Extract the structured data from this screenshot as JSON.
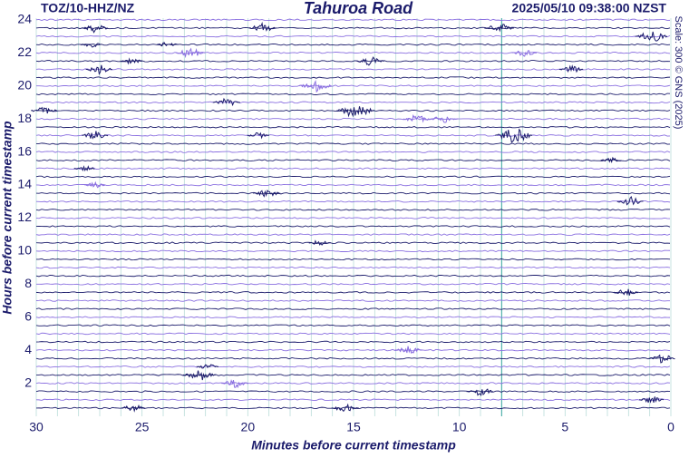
{
  "chart_data": {
    "type": "helicorder",
    "station": "TOZ/10-HHZ/NZ",
    "title": "Tahuroa Road",
    "timestamp": "2025/05/10 09:38:00 NZST",
    "scale_note": "Scale: 300 © GNS (2025)",
    "x_label": "Minutes before current timestamp",
    "y_label": "Hours before current timestamp",
    "xlim": [
      30,
      0
    ],
    "ylim": [
      0,
      24.1
    ],
    "xticks": [
      30,
      25,
      20,
      15,
      10,
      5,
      0
    ],
    "yticks": [
      2,
      4,
      6,
      8,
      10,
      12,
      14,
      16,
      18,
      20,
      22,
      24
    ],
    "trace_interval_hours": 0.5,
    "trace_colors": [
      "#8a6fe0",
      "#1b1b6b"
    ],
    "marker_minute": 8,
    "marker_color": "#3aa7a0",
    "grid": true,
    "series": [
      {
        "color": "#1b1b6b",
        "x": [
          27.2,
          19.3,
          8.1,
          0.9,
          27.4,
          23.8,
          25.5,
          14.2,
          27,
          4.7,
          21,
          29.6,
          14.9,
          7.4,
          19.5,
          27.2,
          2.8,
          27.7,
          19.1,
          1.9,
          16.6,
          2.1,
          0.4,
          21.9,
          22.3,
          9,
          0.9,
          25.4,
          15.4
        ],
        "y": [
          23.5,
          23.5,
          23.5,
          23,
          22.5,
          22.5,
          21.5,
          21.5,
          21,
          21,
          19,
          18.5,
          18.5,
          17,
          17,
          17,
          15.5,
          15,
          13.5,
          13,
          10.5,
          7.5,
          3.5,
          3,
          2.5,
          1.5,
          1,
          0.5,
          0.5
        ],
        "amp": [
          0.3,
          0.3,
          0.35,
          0.4,
          0.2,
          0.2,
          0.2,
          0.3,
          0.3,
          0.25,
          0.3,
          0.3,
          0.5,
          0.5,
          0.2,
          0.3,
          0.2,
          0.2,
          0.3,
          0.3,
          0.2,
          0.25,
          0.3,
          0.2,
          0.4,
          0.3,
          0.25,
          0.25,
          0.3
        ]
      },
      {
        "color": "#8a6fe0",
        "x": [
          22.7,
          6.9,
          16.8,
          12,
          10.7,
          27.2,
          12.4,
          20.6
        ],
        "y": [
          22,
          22,
          20,
          18,
          18,
          14,
          4,
          2
        ],
        "amp": [
          0.35,
          0.25,
          0.4,
          0.3,
          0.3,
          0.2,
          0.3,
          0.3
        ]
      }
    ]
  }
}
